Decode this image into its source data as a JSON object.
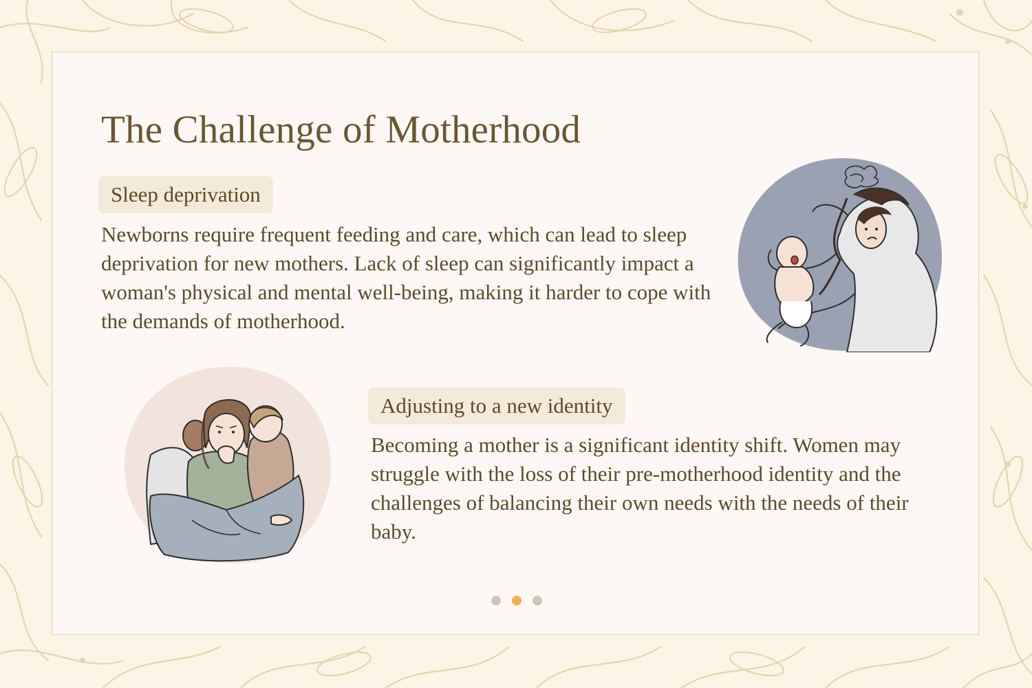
{
  "slide": {
    "title": "The Challenge of Motherhood",
    "sections": [
      {
        "heading": "Sleep deprivation",
        "body": "Newborns require frequent feeding and care, which can lead to sleep deprivation for new mothers. Lack of sleep can significantly impact a woman's physical and mental well-being, making it harder to cope with the demands of motherhood.",
        "illustration_icon": "exhausted-mother-with-crying-baby-illustration"
      },
      {
        "heading": "Adjusting to a new identity",
        "body": "Becoming a mother is a significant identity shift. Women may struggle with the loss of their pre-motherhood identity and the challenges of balancing their own needs with the needs of their baby.",
        "illustration_icon": "anxious-mother-hugging-children-illustration"
      }
    ]
  },
  "pagination": {
    "total": 3,
    "active_index": 1
  },
  "colors": {
    "background": "#fcf5e6",
    "card": "#fdf8f6",
    "title": "#6c5630",
    "pill": "#f3ead9",
    "floral": "#e6d5ad",
    "dot": "#cfc5b6",
    "dot_active": "#f2b24a"
  }
}
